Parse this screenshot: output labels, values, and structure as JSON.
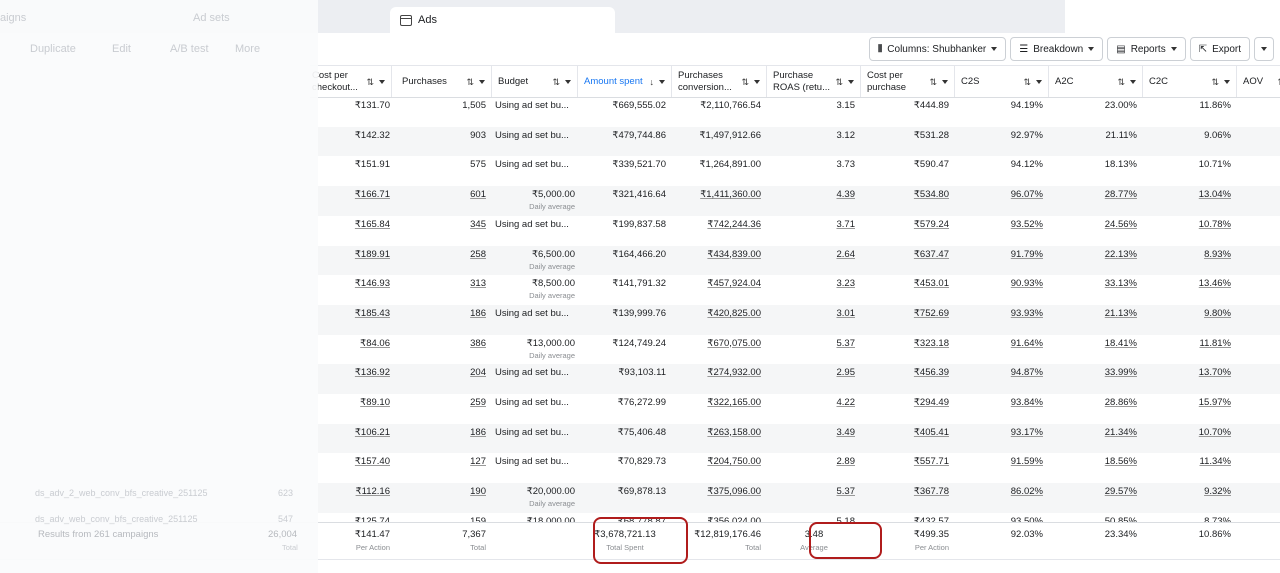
{
  "tabs": {
    "campaigns": "aigns",
    "adsets": "Ad sets",
    "ads": "Ads"
  },
  "left_toolbar": {
    "duplicate": "Duplicate",
    "edit": "Edit",
    "ab_test": "A/B test",
    "more": "More"
  },
  "left_rows": [
    {
      "name": "ds_adv_2_web_conv_bfs_creative_251125",
      "results": "623"
    },
    {
      "name": "ds_adv_web_conv_bfs_creative_251125",
      "results": "547"
    }
  ],
  "toolbar": {
    "columns": "Columns: Shubhanker",
    "breakdown": "Breakdown",
    "reports": "Reports",
    "export": "Export"
  },
  "columns": [
    {
      "label": "Cost per checkout...",
      "key": "cpc"
    },
    {
      "label": "Purchases",
      "key": "purchases"
    },
    {
      "label": "Budget",
      "key": "budget"
    },
    {
      "label": "Amount spent",
      "key": "spent",
      "active": true
    },
    {
      "label": "Purchases conversion...",
      "key": "conv"
    },
    {
      "label": "Purchase ROAS (retu...",
      "key": "roas"
    },
    {
      "label": "Cost per purchase",
      "key": "cpp"
    },
    {
      "label": "C2S",
      "key": "c2s"
    },
    {
      "label": "A2C",
      "key": "a2c"
    },
    {
      "label": "C2C",
      "key": "c2c"
    },
    {
      "label": "AOV",
      "key": "aov"
    }
  ],
  "rows": [
    {
      "cpc": "₹131.70",
      "purchases": "1,505",
      "budget": "Using ad set bu...",
      "spent": "₹669,555.02",
      "conv": "₹2,110,766.54",
      "roas": "3.15",
      "cpp": "₹444.89",
      "c2s": "94.19%",
      "a2c": "23.00%",
      "c2c": "11.86%",
      "linked": false
    },
    {
      "cpc": "₹142.32",
      "purchases": "903",
      "budget": "Using ad set bu...",
      "spent": "₹479,744.86",
      "conv": "₹1,497,912.66",
      "roas": "3.12",
      "cpp": "₹531.28",
      "c2s": "92.97%",
      "a2c": "21.11%",
      "c2c": "9.06%",
      "linked": false
    },
    {
      "cpc": "₹151.91",
      "purchases": "575",
      "budget": "Using ad set bu...",
      "spent": "₹339,521.70",
      "conv": "₹1,264,891.00",
      "roas": "3.73",
      "cpp": "₹590.47",
      "c2s": "94.12%",
      "a2c": "18.13%",
      "c2c": "10.71%",
      "linked": false
    },
    {
      "cpc": "₹166.71",
      "purchases": "601",
      "budget": "₹5,000.00",
      "budget_sub": "Daily average",
      "spent": "₹321,416.64",
      "conv": "₹1,411,360.00",
      "roas": "4.39",
      "cpp": "₹534.80",
      "c2s": "96.07%",
      "a2c": "28.77%",
      "c2c": "13.04%",
      "linked": true
    },
    {
      "cpc": "₹165.84",
      "purchases": "345",
      "budget": "Using ad set bu...",
      "spent": "₹199,837.58",
      "conv": "₹742,244.36",
      "roas": "3.71",
      "cpp": "₹579.24",
      "c2s": "93.52%",
      "a2c": "24.56%",
      "c2c": "10.78%",
      "linked": true
    },
    {
      "cpc": "₹189.91",
      "purchases": "258",
      "budget": "₹6,500.00",
      "budget_sub": "Daily average",
      "spent": "₹164,466.20",
      "conv": "₹434,839.00",
      "roas": "2.64",
      "cpp": "₹637.47",
      "c2s": "91.79%",
      "a2c": "22.13%",
      "c2c": "8.93%",
      "linked": true
    },
    {
      "cpc": "₹146.93",
      "purchases": "313",
      "budget": "₹8,500.00",
      "budget_sub": "Daily average",
      "spent": "₹141,791.32",
      "conv": "₹457,924.04",
      "roas": "3.23",
      "cpp": "₹453.01",
      "c2s": "90.93%",
      "a2c": "33.13%",
      "c2c": "13.46%",
      "linked": true
    },
    {
      "cpc": "₹185.43",
      "purchases": "186",
      "budget": "Using ad set bu...",
      "spent": "₹139,999.76",
      "conv": "₹420,825.00",
      "roas": "3.01",
      "cpp": "₹752.69",
      "c2s": "93.93%",
      "a2c": "21.13%",
      "c2c": "9.80%",
      "linked": true
    },
    {
      "cpc": "₹84.06",
      "purchases": "386",
      "budget": "₹13,000.00",
      "budget_sub": "Daily average",
      "spent": "₹124,749.24",
      "conv": "₹670,075.00",
      "roas": "5.37",
      "cpp": "₹323.18",
      "c2s": "91.64%",
      "a2c": "18.41%",
      "c2c": "11.81%",
      "linked": true
    },
    {
      "cpc": "₹136.92",
      "purchases": "204",
      "budget": "Using ad set bu...",
      "spent": "₹93,103.11",
      "conv": "₹274,932.00",
      "roas": "2.95",
      "cpp": "₹456.39",
      "c2s": "94.87%",
      "a2c": "33.99%",
      "c2c": "13.70%",
      "linked": true
    },
    {
      "cpc": "₹89.10",
      "purchases": "259",
      "budget": "Using ad set bu...",
      "spent": "₹76,272.99",
      "conv": "₹322,165.00",
      "roas": "4.22",
      "cpp": "₹294.49",
      "c2s": "93.84%",
      "a2c": "28.86%",
      "c2c": "15.97%",
      "linked": true
    },
    {
      "cpc": "₹106.21",
      "purchases": "186",
      "budget": "Using ad set bu...",
      "spent": "₹75,406.48",
      "conv": "₹263,158.00",
      "roas": "3.49",
      "cpp": "₹405.41",
      "c2s": "93.17%",
      "a2c": "21.34%",
      "c2c": "10.70%",
      "linked": true
    },
    {
      "cpc": "₹157.40",
      "purchases": "127",
      "budget": "Using ad set bu...",
      "spent": "₹70,829.73",
      "conv": "₹204,750.00",
      "roas": "2.89",
      "cpp": "₹557.71",
      "c2s": "91.59%",
      "a2c": "18.56%",
      "c2c": "11.34%",
      "linked": true
    },
    {
      "cpc": "₹112.16",
      "purchases": "190",
      "budget": "₹20,000.00",
      "budget_sub": "Daily average",
      "spent": "₹69,878.13",
      "conv": "₹375,096.00",
      "roas": "5.37",
      "cpp": "₹367.78",
      "c2s": "86.02%",
      "a2c": "29.57%",
      "c2c": "9.32%",
      "linked": true
    },
    {
      "cpc": "₹125.74",
      "purchases": "159",
      "budget": "₹18,000.00",
      "spent": "₹68,778.87",
      "conv": "₹356,024.00",
      "roas": "5.18",
      "cpp": "₹432.57",
      "c2s": "93.50%",
      "a2c": "50.85%",
      "c2c": "8.73%",
      "linked": true
    }
  ],
  "footer": {
    "results_label": "Results from 261 campaigns",
    "results": {
      "value": "26,004",
      "sub": "Total"
    },
    "cpc": {
      "value": "₹141.47",
      "sub": "Per Action"
    },
    "purchases": {
      "value": "7,367",
      "sub": "Total"
    },
    "spent": {
      "value": "₹3,678,721.13",
      "sub": "Total Spent"
    },
    "conv": {
      "value": "₹12,819,176.46",
      "sub": "Total"
    },
    "roas": {
      "value": "3.48",
      "sub": "Average"
    },
    "cpp": {
      "value": "₹499.35",
      "sub": "Per Action"
    },
    "c2s": {
      "value": "92.03%"
    },
    "a2c": {
      "value": "23.34%"
    },
    "c2c": {
      "value": "10.86%"
    }
  },
  "colors": {
    "accent": "#1877f2",
    "highlight": "#b01c1c"
  }
}
